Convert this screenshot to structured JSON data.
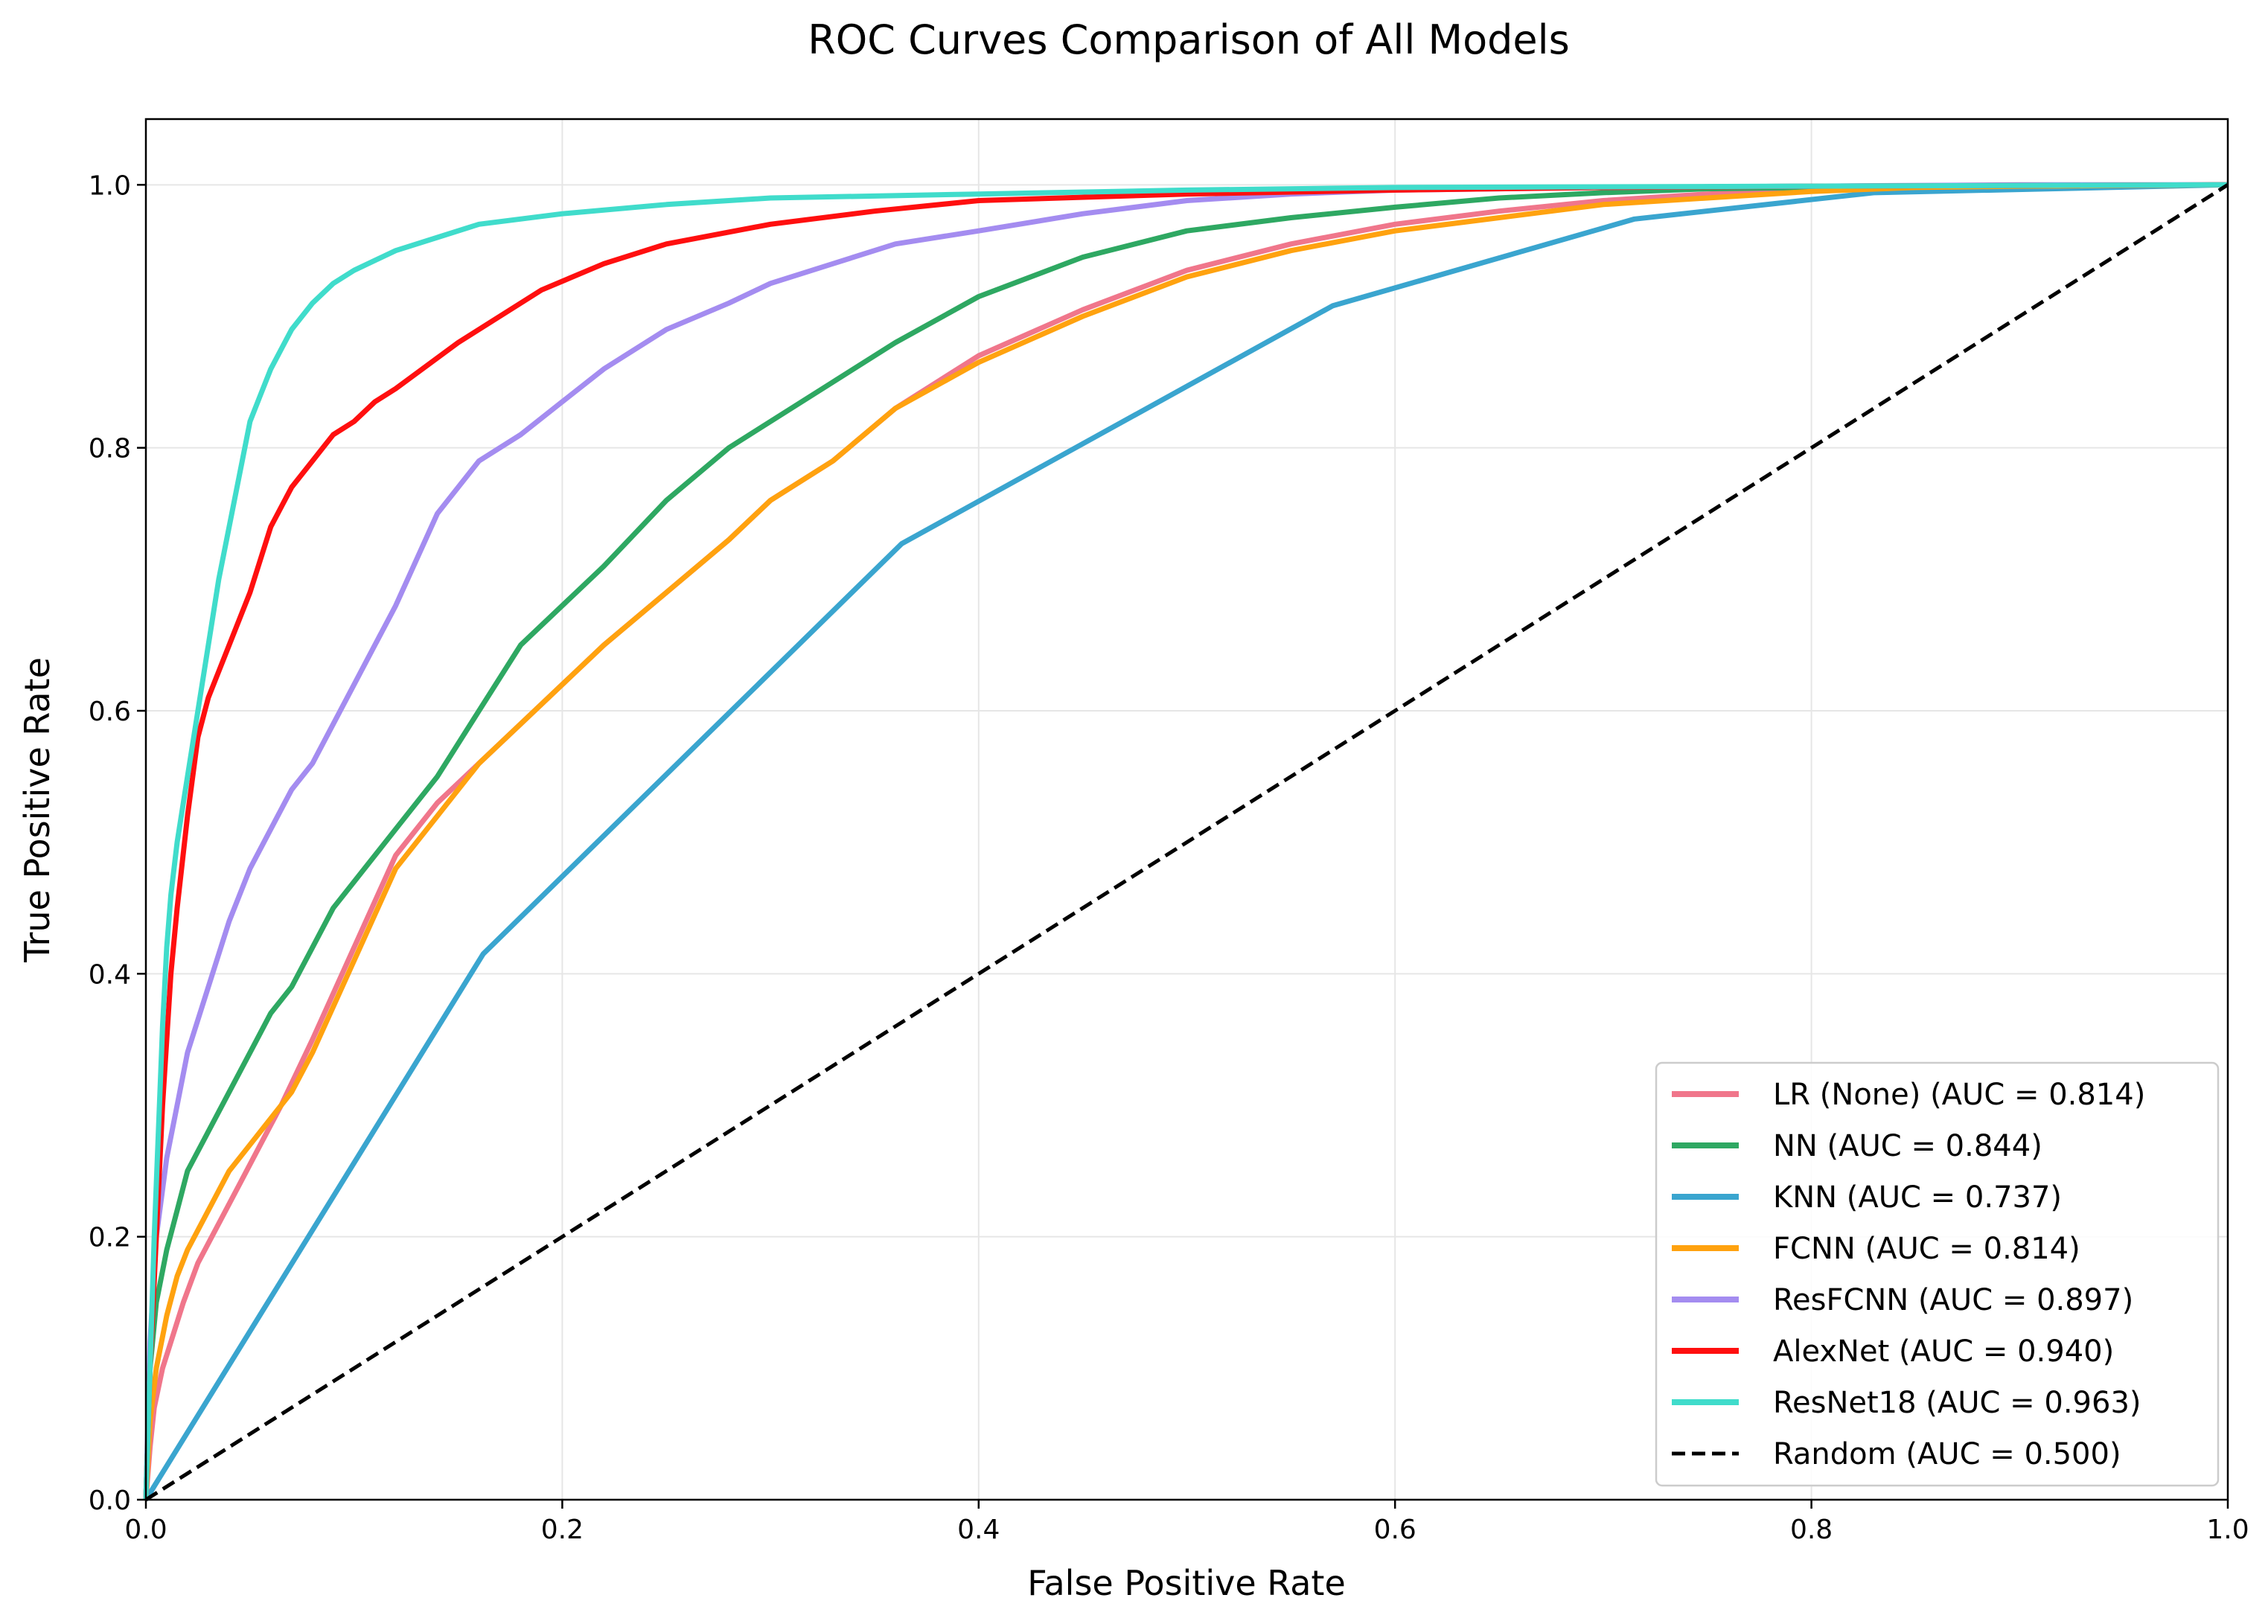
{
  "chart_data": {
    "type": "line",
    "title": "ROC Curves Comparison of All Models",
    "xlabel": "False Positive Rate",
    "ylabel": "True Positive Rate",
    "xlim": [
      0.0,
      1.0
    ],
    "ylim": [
      0.0,
      1.05
    ],
    "xticks": [
      0.0,
      0.2,
      0.4,
      0.6,
      0.8,
      1.0
    ],
    "yticks": [
      0.0,
      0.2,
      0.4,
      0.6,
      0.8,
      1.0
    ],
    "xtick_labels": [
      "0.0",
      "0.2",
      "0.4",
      "0.6",
      "0.8",
      "1.0"
    ],
    "ytick_labels": [
      "0.0",
      "0.2",
      "0.4",
      "0.6",
      "0.8",
      "1.0"
    ],
    "grid": true,
    "legend_position": "lower-right",
    "series": [
      {
        "name": "LR (None) (AUC = 0.814)",
        "color": "#f0768b",
        "dash": "solid",
        "x": [
          0,
          0.002,
          0.004,
          0.008,
          0.012,
          0.018,
          0.025,
          0.035,
          0.045,
          0.055,
          0.065,
          0.08,
          0.1,
          0.12,
          0.14,
          0.16,
          0.18,
          0.2,
          0.22,
          0.25,
          0.28,
          0.3,
          0.33,
          0.36,
          0.4,
          0.45,
          0.5,
          0.55,
          0.6,
          0.65,
          0.7,
          0.75,
          0.8,
          0.85,
          0.9,
          1.0
        ],
        "y": [
          0,
          0.04,
          0.07,
          0.1,
          0.12,
          0.15,
          0.18,
          0.21,
          0.24,
          0.27,
          0.3,
          0.35,
          0.42,
          0.49,
          0.53,
          0.56,
          0.59,
          0.62,
          0.65,
          0.69,
          0.73,
          0.76,
          0.79,
          0.83,
          0.87,
          0.905,
          0.935,
          0.955,
          0.97,
          0.98,
          0.988,
          0.993,
          0.996,
          0.998,
          0.999,
          1.0
        ]
      },
      {
        "name": "NN (AUC = 0.844)",
        "color": "#2ea862",
        "dash": "solid",
        "x": [
          0,
          0.002,
          0.005,
          0.01,
          0.015,
          0.02,
          0.03,
          0.04,
          0.05,
          0.06,
          0.07,
          0.08,
          0.09,
          0.1,
          0.12,
          0.14,
          0.16,
          0.18,
          0.2,
          0.22,
          0.25,
          0.28,
          0.3,
          0.33,
          0.36,
          0.4,
          0.45,
          0.5,
          0.55,
          0.6,
          0.65,
          0.7,
          0.75,
          0.8,
          0.9,
          1.0
        ],
        "y": [
          0,
          0.1,
          0.15,
          0.19,
          0.22,
          0.25,
          0.28,
          0.31,
          0.34,
          0.37,
          0.39,
          0.42,
          0.45,
          0.47,
          0.51,
          0.55,
          0.6,
          0.65,
          0.68,
          0.71,
          0.76,
          0.8,
          0.82,
          0.85,
          0.88,
          0.915,
          0.945,
          0.965,
          0.975,
          0.983,
          0.99,
          0.994,
          0.997,
          0.998,
          0.999,
          1.0
        ]
      },
      {
        "name": "KNN (AUC = 0.737)",
        "color": "#3aa5cf",
        "dash": "solid",
        "x": [
          0,
          0.162,
          0.363,
          0.57,
          0.715,
          0.83,
          1.0
        ],
        "y": [
          0,
          0.415,
          0.727,
          0.908,
          0.974,
          0.994,
          1.0
        ]
      },
      {
        "name": "FCNN (AUC = 0.814)",
        "color": "#ffa20f",
        "dash": "solid",
        "x": [
          0,
          0.002,
          0.005,
          0.01,
          0.015,
          0.02,
          0.03,
          0.04,
          0.05,
          0.06,
          0.07,
          0.08,
          0.1,
          0.12,
          0.14,
          0.16,
          0.18,
          0.2,
          0.22,
          0.25,
          0.28,
          0.3,
          0.33,
          0.36,
          0.4,
          0.45,
          0.5,
          0.55,
          0.6,
          0.65,
          0.7,
          0.75,
          0.8,
          0.85,
          0.9,
          1.0
        ],
        "y": [
          0,
          0.06,
          0.1,
          0.14,
          0.17,
          0.19,
          0.22,
          0.25,
          0.27,
          0.29,
          0.31,
          0.34,
          0.41,
          0.48,
          0.52,
          0.56,
          0.59,
          0.62,
          0.65,
          0.69,
          0.73,
          0.76,
          0.79,
          0.83,
          0.865,
          0.9,
          0.93,
          0.95,
          0.965,
          0.975,
          0.985,
          0.99,
          0.995,
          0.998,
          0.999,
          1.0
        ]
      },
      {
        "name": "ResFCNN (AUC = 0.897)",
        "color": "#a48cf0",
        "dash": "solid",
        "x": [
          0,
          0.002,
          0.005,
          0.01,
          0.015,
          0.02,
          0.03,
          0.04,
          0.05,
          0.06,
          0.07,
          0.08,
          0.1,
          0.12,
          0.14,
          0.16,
          0.18,
          0.2,
          0.22,
          0.25,
          0.28,
          0.3,
          0.33,
          0.36,
          0.4,
          0.45,
          0.5,
          0.55,
          0.6,
          0.7,
          0.8,
          0.9,
          1.0
        ],
        "y": [
          0,
          0.12,
          0.2,
          0.26,
          0.3,
          0.34,
          0.39,
          0.44,
          0.48,
          0.51,
          0.54,
          0.56,
          0.62,
          0.68,
          0.75,
          0.79,
          0.81,
          0.835,
          0.86,
          0.89,
          0.91,
          0.925,
          0.94,
          0.955,
          0.965,
          0.978,
          0.988,
          0.993,
          0.996,
          0.998,
          0.999,
          1.0,
          1.0
        ]
      },
      {
        "name": "AlexNet (AUC = 0.940)",
        "color": "#ff0f0f",
        "dash": "solid",
        "x": [
          0,
          0.002,
          0.005,
          0.008,
          0.012,
          0.015,
          0.02,
          0.025,
          0.03,
          0.035,
          0.04,
          0.05,
          0.06,
          0.07,
          0.08,
          0.09,
          0.1,
          0.11,
          0.12,
          0.15,
          0.19,
          0.22,
          0.25,
          0.3,
          0.35,
          0.4,
          0.5,
          0.6,
          0.7,
          0.8,
          1.0
        ],
        "y": [
          0,
          0.1,
          0.2,
          0.3,
          0.4,
          0.45,
          0.52,
          0.58,
          0.61,
          0.63,
          0.65,
          0.69,
          0.74,
          0.77,
          0.79,
          0.81,
          0.82,
          0.835,
          0.845,
          0.88,
          0.92,
          0.94,
          0.955,
          0.97,
          0.98,
          0.988,
          0.993,
          0.996,
          0.998,
          0.999,
          1.0
        ]
      },
      {
        "name": "ResNet18 (AUC = 0.963)",
        "color": "#40dccb",
        "dash": "solid",
        "x": [
          0,
          0.002,
          0.004,
          0.006,
          0.008,
          0.01,
          0.012,
          0.015,
          0.018,
          0.02,
          0.025,
          0.03,
          0.035,
          0.04,
          0.045,
          0.05,
          0.055,
          0.06,
          0.07,
          0.08,
          0.09,
          0.1,
          0.12,
          0.14,
          0.16,
          0.2,
          0.25,
          0.3,
          0.4,
          0.5,
          0.6,
          0.8,
          1.0
        ],
        "y": [
          0,
          0.1,
          0.2,
          0.28,
          0.36,
          0.42,
          0.46,
          0.5,
          0.53,
          0.55,
          0.6,
          0.65,
          0.7,
          0.74,
          0.78,
          0.82,
          0.84,
          0.86,
          0.89,
          0.91,
          0.925,
          0.935,
          0.95,
          0.96,
          0.97,
          0.978,
          0.985,
          0.99,
          0.993,
          0.996,
          0.998,
          0.999,
          1.0
        ]
      },
      {
        "name": "Random (AUC = 0.500)",
        "color": "#000000",
        "dash": "dashed",
        "x": [
          0,
          1.0
        ],
        "y": [
          0,
          1.0
        ]
      }
    ]
  }
}
